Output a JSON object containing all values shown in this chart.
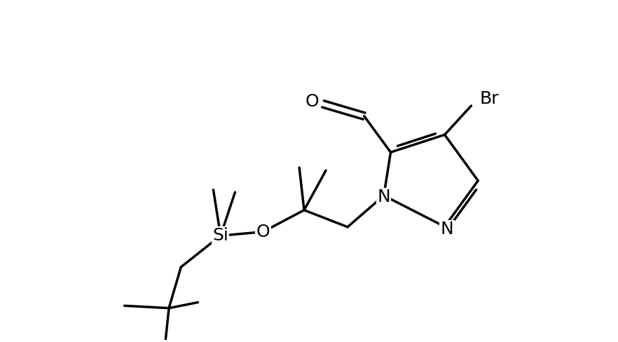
{
  "background_color": "#ffffff",
  "line_color": "#000000",
  "line_width": 2.5,
  "font_size": 18,
  "figsize": [
    8.82,
    4.88
  ],
  "dpi": 100,
  "xlim": [
    -0.5,
    10.5
  ],
  "ylim": [
    -3.5,
    3.5
  ]
}
